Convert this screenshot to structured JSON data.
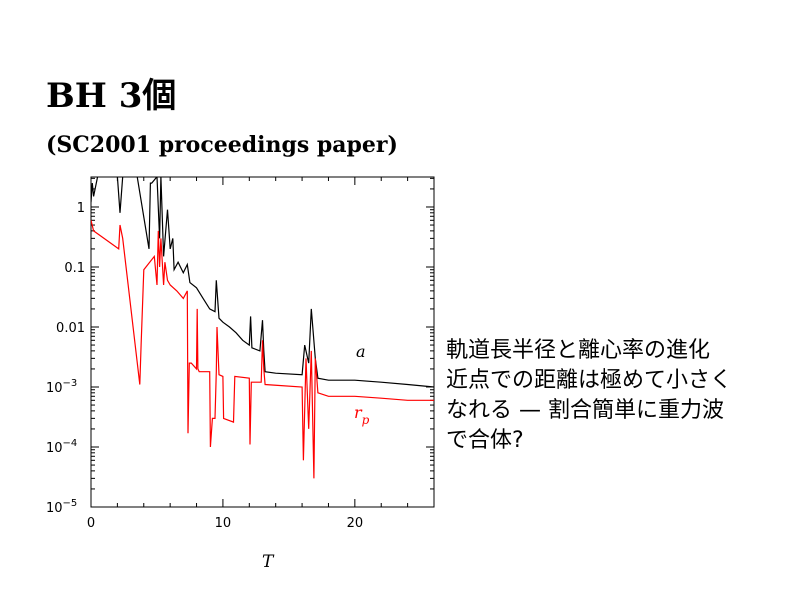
{
  "slide": {
    "title": "BH 3個",
    "subtitle": "(SC2001 proceedings paper)",
    "notes": [
      "軌道長半径と離心率の進化",
      "近点での距離は極めて小さくなれる — 割合簡単に重力波で合体?"
    ]
  },
  "chart_data": {
    "type": "line",
    "title": "",
    "xlabel": "T",
    "ylabel": "",
    "xlim": [
      0,
      26
    ],
    "ylim": [
      1e-05,
      3.16
    ],
    "yscale": "log",
    "xticks": [
      {
        "v": 0,
        "label": "0"
      },
      {
        "v": 10,
        "label": "10"
      },
      {
        "v": 20,
        "label": "20"
      }
    ],
    "yticks": [
      {
        "v": 1,
        "label": "1",
        "exp": ""
      },
      {
        "v": 0.1,
        "label": "0.1",
        "exp": ""
      },
      {
        "v": 0.01,
        "label": "0.01",
        "exp": ""
      },
      {
        "v": 0.001,
        "label": "10",
        "exp": "−3"
      },
      {
        "v": 0.0001,
        "label": "10",
        "exp": "−4"
      },
      {
        "v": 1e-05,
        "label": "10",
        "exp": "−5"
      }
    ],
    "series": [
      {
        "name": "a",
        "label": "a",
        "color": "#000000",
        "x": [
          0,
          0.1,
          0.2,
          0.5,
          2.0,
          2.2,
          2.4,
          3.5,
          4.4,
          4.5,
          4.6,
          5.0,
          5.2,
          5.3,
          5.5,
          5.8,
          6.0,
          6.2,
          6.3,
          6.6,
          7.0,
          7.3,
          7.5,
          8.0,
          8.5,
          9.0,
          9.4,
          9.5,
          9.7,
          10,
          10.5,
          11,
          11.5,
          12,
          12.1,
          12.2,
          12.8,
          13.0,
          13.1,
          13.2,
          14,
          16,
          16.2,
          16.5,
          16.7,
          17,
          17.2,
          18,
          20,
          22,
          24,
          26
        ],
        "y": [
          1.2,
          2.5,
          1.5,
          3.2,
          3.2,
          0.8,
          3.2,
          3.2,
          0.2,
          2.5,
          2.5,
          3.2,
          0.3,
          3.2,
          0.15,
          0.9,
          0.2,
          0.3,
          0.09,
          0.12,
          0.08,
          0.11,
          0.055,
          0.045,
          0.03,
          0.02,
          0.018,
          0.06,
          0.014,
          0.012,
          0.01,
          0.008,
          0.006,
          0.005,
          0.015,
          0.0045,
          0.004,
          0.013,
          0.004,
          0.0018,
          0.0017,
          0.0016,
          0.005,
          0.0025,
          0.02,
          0.003,
          0.0014,
          0.0013,
          0.0013,
          0.0012,
          0.0011,
          0.001
        ]
      },
      {
        "name": "r_p",
        "label": "r",
        "sub": "p",
        "color": "#ff0000",
        "x": [
          0,
          0.2,
          2.1,
          2.2,
          2.4,
          3.7,
          3.8,
          4.0,
          4.8,
          5.0,
          5.1,
          5.2,
          5.3,
          5.5,
          5.6,
          5.8,
          6.0,
          6.5,
          7.0,
          7.3,
          7.35,
          7.45,
          7.6,
          8.0,
          8.05,
          8.1,
          8.2,
          9.0,
          9.05,
          9.2,
          9.4,
          9.5,
          9.55,
          9.7,
          10,
          10.05,
          10.8,
          10.9,
          12,
          12.05,
          12.15,
          12.9,
          13.0,
          13.1,
          13.2,
          16,
          16.1,
          16.3,
          16.5,
          16.7,
          16.9,
          17.0,
          17.2,
          18,
          20,
          22,
          24,
          26
        ],
        "y": [
          0.6,
          0.4,
          0.2,
          0.5,
          0.3,
          0.0011,
          0.005,
          0.09,
          0.15,
          0.05,
          0.4,
          0.1,
          0.3,
          0.05,
          0.12,
          0.06,
          0.05,
          0.04,
          0.03,
          0.04,
          0.00017,
          0.0025,
          0.0025,
          0.002,
          0.02,
          0.002,
          0.0018,
          0.0018,
          0.0001,
          0.0003,
          0.0003,
          0.0018,
          0.01,
          0.0016,
          0.0015,
          0.0003,
          0.00026,
          0.0015,
          0.0014,
          0.00011,
          0.0012,
          0.0012,
          0.006,
          0.002,
          0.0011,
          0.001,
          6e-05,
          0.003,
          0.0002,
          0.004,
          3e-05,
          0.003,
          0.0008,
          0.0007,
          0.0007,
          0.00065,
          0.0006,
          0.0006
        ]
      }
    ]
  }
}
